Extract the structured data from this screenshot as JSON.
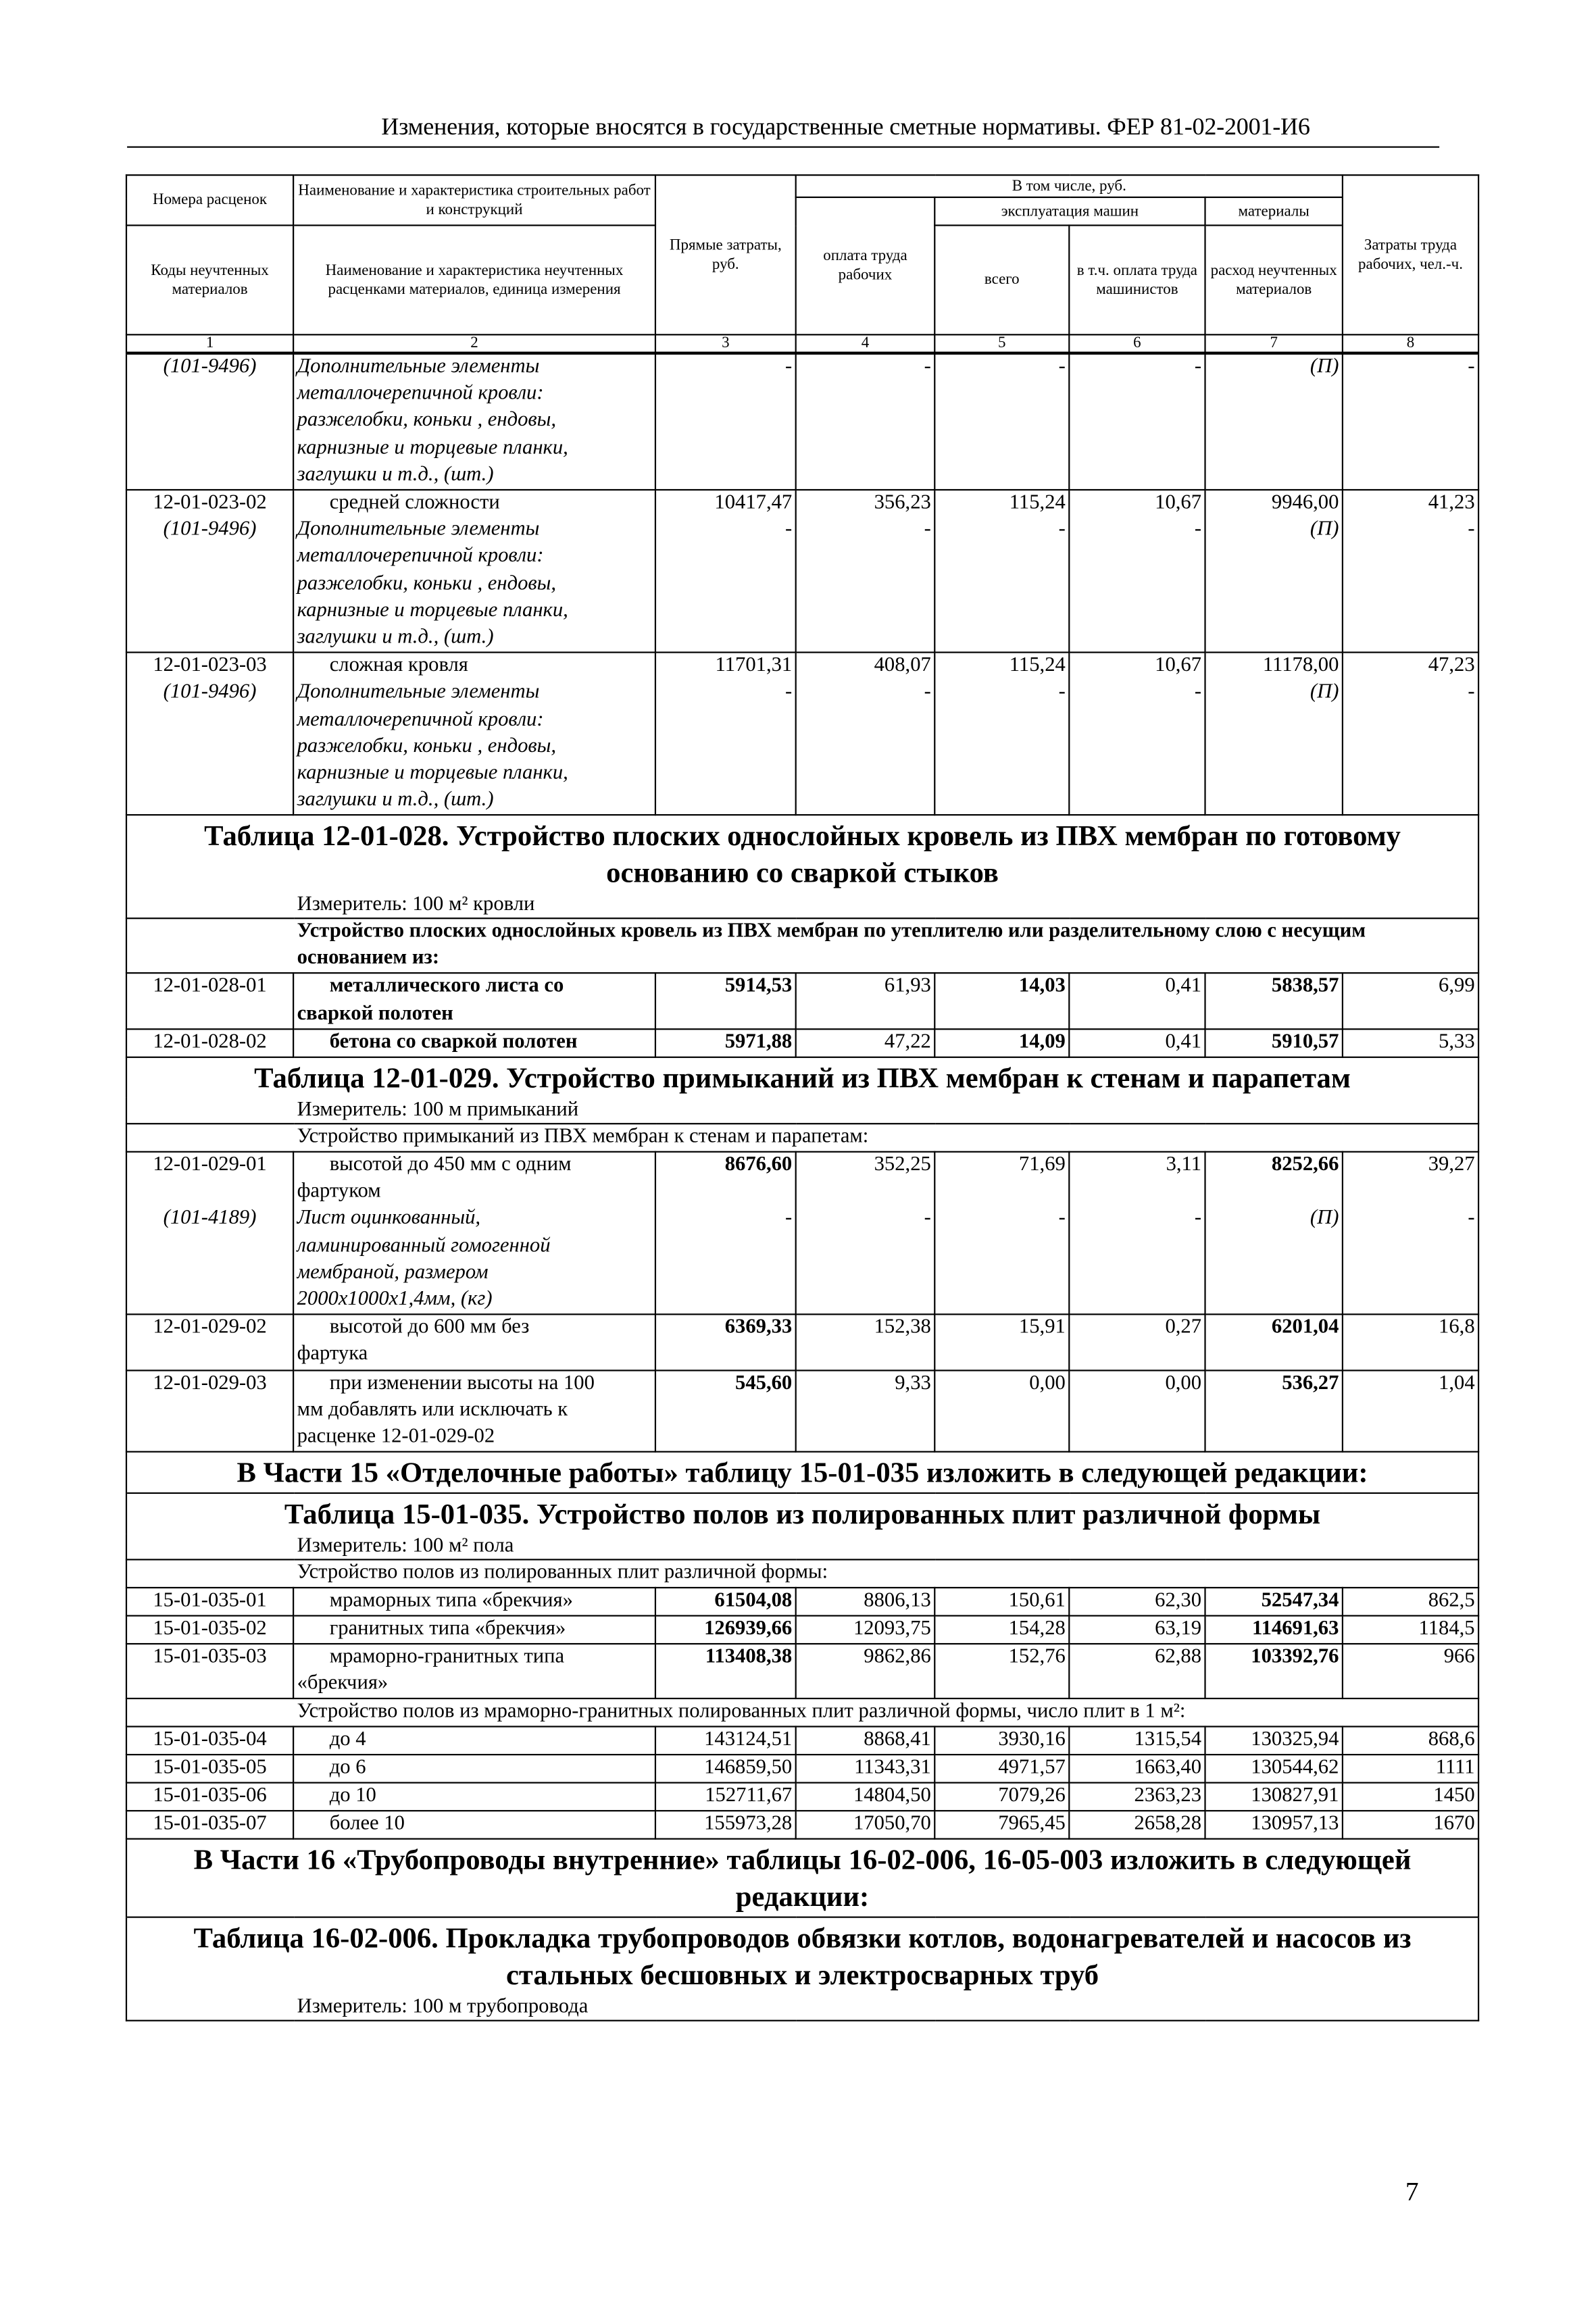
{
  "running_header": "Изменения, которые вносятся в государственные сметные нормативы. ФЕР 81-02-2001-И6",
  "page_number": "7",
  "header": {
    "col1_top": "Номера расценок",
    "col2_top": "Наименование и характеристика строительных работ и конструкций",
    "col3": "Прямые затраты, руб.",
    "including": "В том числе, руб.",
    "col4": "оплата труда рабочих",
    "machines": "эксплуатация машин",
    "materials": "материалы",
    "col8": "Затраты труда рабочих, чел.-ч.",
    "col1_bottom": "Коды неучтенных материалов",
    "col2_bottom": "Наименование и характеристика неучтенных расценками материалов, единица измерения",
    "col5": "всего",
    "col6": "в т.ч. оплата труда машинистов",
    "col7": "расход неучтенных материалов",
    "numbers": [
      "1",
      "2",
      "3",
      "4",
      "5",
      "6",
      "7",
      "8"
    ]
  },
  "rows": [
    {
      "type": "item",
      "code": "",
      "subcode": "(101-9496)",
      "name": "",
      "sub": "Дополнительные элементы\nметаллочерепичной кровли:\nразжелобки, коньки , ендовы,\nкарнизные и торцевые планки,\nзаглушки и т.д., (шт.)",
      "values": [],
      "subvalues": [
        "-",
        "-",
        "-",
        "-",
        "(П)",
        "-"
      ],
      "bold": []
    },
    {
      "type": "item",
      "code": "12-01-023-02",
      "subcode": "(101-9496)",
      "name": "средней сложности",
      "sub": "Дополнительные элементы\nметаллочерепичной кровли:\nразжелобки, коньки , ендовы,\nкарнизные и торцевые планки,\nзаглушки и т.д., (шт.)",
      "values": [
        "10417,47",
        "356,23",
        "115,24",
        "10,67",
        "9946,00",
        "41,23"
      ],
      "subvalues": [
        "-",
        "-",
        "-",
        "-",
        "(П)",
        "-"
      ],
      "bold": []
    },
    {
      "type": "item",
      "code": "12-01-023-03",
      "subcode": "(101-9496)",
      "name": "сложная кровля",
      "sub": "Дополнительные элементы\nметаллочерепичной кровли:\nразжелобки, коньки , ендовы,\nкарнизные и торцевые планки,\nзаглушки и т.д., (шт.)",
      "values": [
        "11701,31",
        "408,07",
        "115,24",
        "10,67",
        "11178,00",
        "47,23"
      ],
      "subvalues": [
        "-",
        "-",
        "-",
        "-",
        "(П)",
        "-"
      ],
      "bold": []
    },
    {
      "type": "title",
      "text": "Таблица 12-01-028. Устройство плоских однослойных кровель из ПВХ мембран по готовому основанию со сваркой стыков"
    },
    {
      "type": "meas",
      "text": "Измеритель: 100 м² кровли"
    },
    {
      "type": "group",
      "bold": true,
      "text": "Устройство плоских однослойных кровель из ПВХ мембран по утеплителю или разделительному слою с несущим основанием из:"
    },
    {
      "type": "item",
      "code": "12-01-028-01",
      "name": "металлического листа со\nсваркой полотен",
      "namebold": true,
      "values": [
        "5914,53",
        "61,93",
        "14,03",
        "0,41",
        "5838,57",
        "6,99"
      ],
      "bold": [
        0,
        2,
        4
      ]
    },
    {
      "type": "item",
      "code": "12-01-028-02",
      "name": "бетона со сваркой полотен",
      "namebold": true,
      "values": [
        "5971,88",
        "47,22",
        "14,09",
        "0,41",
        "5910,57",
        "5,33"
      ],
      "bold": [
        0,
        2,
        4
      ]
    },
    {
      "type": "title",
      "text": "Таблица 12-01-029. Устройство примыканий из ПВХ мембран к стенам и парапетам"
    },
    {
      "type": "meas",
      "text": "Измеритель: 100 м примыканий"
    },
    {
      "type": "group",
      "text": "Устройство примыканий из ПВХ мембран к стенам и парапетам:"
    },
    {
      "type": "item",
      "code": "12-01-029-01",
      "subcode": "(101-4189)",
      "name": "высотой до 450 мм с одним\nфартуком",
      "sub": "Лист оцинкованный,\nламинированный гомогенной\nмембраной, размером\n2000х1000х1,4мм, (кг)",
      "values": [
        "8676,60",
        "352,25",
        "71,69",
        "3,11",
        "8252,66",
        "39,27"
      ],
      "subvalues": [
        "-",
        "-",
        "-",
        "-",
        "(П)",
        "-"
      ],
      "bold": [
        0,
        4
      ]
    },
    {
      "type": "item",
      "code": "12-01-029-02",
      "name": "высотой до 600 мм без\nфартука",
      "values": [
        "6369,33",
        "152,38",
        "15,91",
        "0,27",
        "6201,04",
        "16,8"
      ],
      "bold": [
        0,
        4
      ]
    },
    {
      "type": "item",
      "code": "12-01-029-03",
      "name": "при изменении высоты на 100\nмм добавлять или исключать к\nрасценке 12-01-029-02",
      "values": [
        "545,60",
        "9,33",
        "0,00",
        "0,00",
        "536,27",
        "1,04"
      ],
      "bold": [
        0,
        4
      ]
    },
    {
      "type": "title",
      "text": "В Части 15 «Отделочные работы» таблицу 15-01-035 изложить в следующей редакции:"
    },
    {
      "type": "title",
      "text": "Таблица 15-01-035. Устройство полов из полированных плит различной формы"
    },
    {
      "type": "meas",
      "text": "Измеритель: 100 м² пола"
    },
    {
      "type": "group",
      "text": "Устройство полов из полированных плит различной формы:"
    },
    {
      "type": "item",
      "compact": true,
      "code": "15-01-035-01",
      "name": "мраморных типа «брекчия»",
      "values": [
        "61504,08",
        "8806,13",
        "150,61",
        "62,30",
        "52547,34",
        "862,5"
      ],
      "bold": [
        0,
        4
      ]
    },
    {
      "type": "item",
      "compact": true,
      "code": "15-01-035-02",
      "name": "гранитных типа «брекчия»",
      "values": [
        "126939,66",
        "12093,75",
        "154,28",
        "63,19",
        "114691,63",
        "1184,5"
      ],
      "bold": [
        0,
        4
      ]
    },
    {
      "type": "item",
      "compact": true,
      "code": "15-01-035-03",
      "name": "мраморно-гранитных типа\n«брекчия»",
      "values": [
        "113408,38",
        "9862,86",
        "152,76",
        "62,88",
        "103392,76",
        "966"
      ],
      "bold": [
        0,
        4
      ]
    },
    {
      "type": "group",
      "text": "Устройство полов из мраморно-гранитных полированных плит различной формы, число плит в 1 м²:"
    },
    {
      "type": "item",
      "compact": true,
      "code": "15-01-035-04",
      "name": "до 4",
      "values": [
        "143124,51",
        "8868,41",
        "3930,16",
        "1315,54",
        "130325,94",
        "868,6"
      ],
      "bold": []
    },
    {
      "type": "item",
      "compact": true,
      "code": "15-01-035-05",
      "name": "до 6",
      "values": [
        "146859,50",
        "11343,31",
        "4971,57",
        "1663,40",
        "130544,62",
        "1111"
      ],
      "bold": []
    },
    {
      "type": "item",
      "compact": true,
      "code": "15-01-035-06",
      "name": "до 10",
      "values": [
        "152711,67",
        "14804,50",
        "7079,26",
        "2363,23",
        "130827,91",
        "1450"
      ],
      "bold": []
    },
    {
      "type": "item",
      "compact": true,
      "code": "15-01-035-07",
      "name": "более 10",
      "values": [
        "155973,28",
        "17050,70",
        "7965,45",
        "2658,28",
        "130957,13",
        "1670"
      ],
      "bold": []
    },
    {
      "type": "title",
      "text": "В Части 16 «Трубопроводы внутренние» таблицы 16-02-006, 16-05-003 изложить в следующей редакции:"
    },
    {
      "type": "title",
      "text": "Таблица 16-02-006. Прокладка трубопроводов обвязки котлов, водонагревателей и насосов из стальных бесшовных и электросварных труб"
    },
    {
      "type": "meas",
      "text": "Измеритель: 100 м трубопровода"
    }
  ]
}
